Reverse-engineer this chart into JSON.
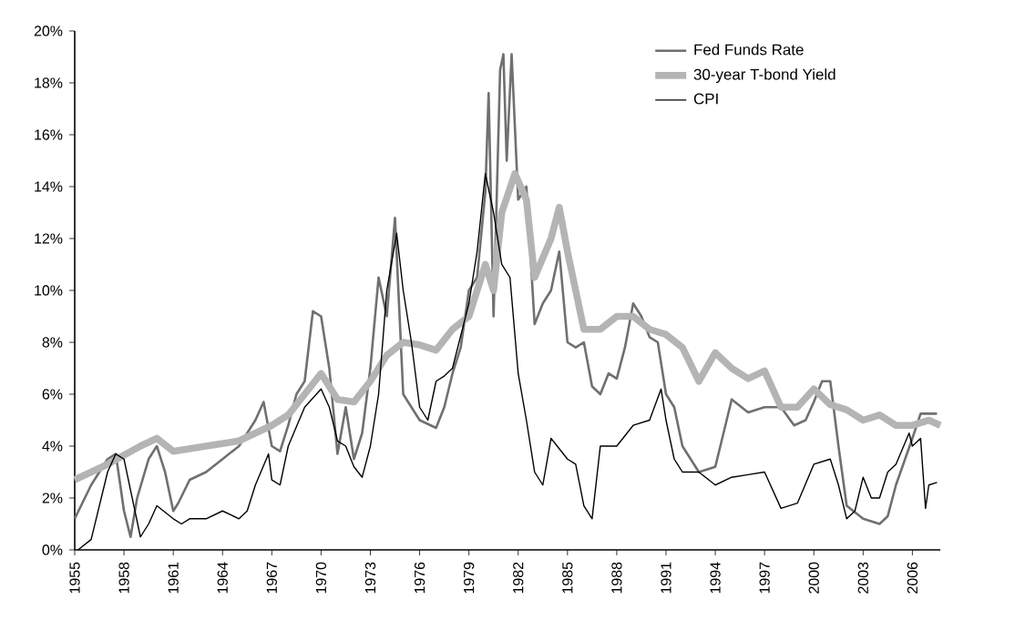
{
  "chart_data": {
    "type": "line",
    "xlim": [
      1955,
      2007.7
    ],
    "xticks": [
      1955,
      1958,
      1961,
      1964,
      1967,
      1970,
      1973,
      1976,
      1979,
      1982,
      1985,
      1988,
      1991,
      1994,
      1997,
      2000,
      2003,
      2006
    ],
    "ylim": [
      0,
      20
    ],
    "yticks": [
      {
        "value": 0,
        "label": "0%"
      },
      {
        "value": 2,
        "label": "2%"
      },
      {
        "value": 4,
        "label": "4%"
      },
      {
        "value": 6,
        "label": "6%"
      },
      {
        "value": 8,
        "label": "8%"
      },
      {
        "value": 10,
        "label": "10%"
      },
      {
        "value": 12,
        "label": "12%"
      },
      {
        "value": 14,
        "label": "14%"
      },
      {
        "value": 16,
        "label": "16%"
      },
      {
        "value": 18,
        "label": "18%"
      },
      {
        "value": 20,
        "label": "20%"
      }
    ],
    "grid": false,
    "legend": "top right",
    "marker": "none",
    "line_style": "solid",
    "series": [
      {
        "name": "Fed Funds Rate",
        "color": "#707070",
        "x": [
          1955,
          1956,
          1957,
          1957.5,
          1958,
          1958.4,
          1958.8,
          1959.5,
          1960,
          1960.5,
          1961,
          1961.3,
          1962,
          1963,
          1964,
          1965,
          1966,
          1966.5,
          1967,
          1967.5,
          1968,
          1968.5,
          1969,
          1969.5,
          1970,
          1970.5,
          1971,
          1971.5,
          1972,
          1972.5,
          1973,
          1973.5,
          1974,
          1974.5,
          1975,
          1975.5,
          1976,
          1977,
          1977.5,
          1978,
          1978.5,
          1979,
          1979.5,
          1980,
          1980.2,
          1980.5,
          1980.9,
          1981.1,
          1981.3,
          1981.6,
          1982,
          1982.5,
          1983,
          1983.5,
          1984,
          1984.5,
          1985,
          1985.5,
          1986,
          1986.5,
          1987,
          1987.5,
          1988,
          1988.5,
          1989,
          1989.5,
          1990,
          1990.5,
          1991,
          1991.5,
          1992,
          1993,
          1994,
          1994.5,
          1995,
          1996,
          1997,
          1998,
          1998.8,
          1999.5,
          2000,
          2000.5,
          2001,
          2001.5,
          2002,
          2003,
          2004,
          2004.5,
          2005,
          2006,
          2006.5,
          2007.5
        ],
        "values": [
          1.2,
          2.5,
          3.5,
          3.7,
          1.5,
          0.5,
          2,
          3.5,
          4.0,
          3,
          1.5,
          1.8,
          2.7,
          3.0,
          3.5,
          4.0,
          5.0,
          5.7,
          4.0,
          3.8,
          4.8,
          6.0,
          6.5,
          9.2,
          9.0,
          7.0,
          3.7,
          5.5,
          3.5,
          4.5,
          7,
          10.5,
          9,
          12.8,
          6,
          5.5,
          5,
          4.7,
          5.5,
          6.8,
          7.8,
          10,
          10.5,
          13.8,
          17.6,
          9,
          18.5,
          19.1,
          15,
          19.1,
          13.5,
          14,
          8.7,
          9.5,
          10,
          11.5,
          8,
          7.8,
          8,
          6.3,
          6.0,
          6.8,
          6.6,
          7.8,
          9.5,
          9,
          8.2,
          8,
          6,
          5.5,
          4,
          3,
          3.2,
          4.5,
          5.8,
          5.3,
          5.5,
          5.5,
          4.8,
          5.0,
          5.7,
          6.5,
          6.5,
          4,
          1.7,
          1.2,
          1.0,
          1.3,
          2.5,
          4.3,
          5.25,
          5.25
        ]
      },
      {
        "name": "30-year T-bond Yield",
        "color": "#b4b4b4",
        "x": [
          1955,
          1957,
          1959,
          1960,
          1961,
          1963,
          1965,
          1966,
          1967,
          1968,
          1969,
          1970,
          1971,
          1972,
          1973,
          1974,
          1975,
          1976,
          1977,
          1978,
          1979,
          1980,
          1980.5,
          1981,
          1981.8,
          1982.5,
          1983,
          1984,
          1984.5,
          1985,
          1986,
          1987,
          1988,
          1989,
          1990,
          1991,
          1992,
          1993,
          1994,
          1995,
          1996,
          1997,
          1998,
          1999,
          2000,
          2001,
          2002,
          2003,
          2004,
          2005,
          2006,
          2007,
          2007.7
        ],
        "values": [
          2.7,
          3.3,
          4.0,
          4.3,
          3.8,
          4.0,
          4.2,
          4.5,
          4.8,
          5.2,
          6.0,
          6.8,
          5.8,
          5.7,
          6.5,
          7.5,
          8.0,
          7.9,
          7.7,
          8.5,
          9.0,
          11,
          10,
          13,
          14.5,
          13.5,
          10.5,
          12.0,
          13.2,
          11.5,
          8.5,
          8.5,
          9,
          9,
          8.5,
          8.3,
          7.8,
          6.5,
          7.6,
          7,
          6.6,
          6.9,
          5.5,
          5.5,
          6.2,
          5.6,
          5.4,
          5.0,
          5.2,
          4.8,
          4.8,
          5.0,
          4.8
        ]
      },
      {
        "name": "CPI",
        "color": "#000000",
        "x": [
          1955.2,
          1956,
          1957,
          1957.5,
          1958,
          1958.5,
          1959,
          1959.5,
          1960,
          1961,
          1961.5,
          1962,
          1963,
          1964,
          1965,
          1965.5,
          1966,
          1966.8,
          1967,
          1967.5,
          1968,
          1969,
          1970,
          1970.5,
          1971,
          1971.5,
          1972,
          1972.5,
          1973,
          1973.5,
          1974,
          1974.6,
          1975,
          1975.5,
          1976,
          1976.5,
          1977,
          1977.5,
          1978,
          1979,
          1979.5,
          1980,
          1980.5,
          1981,
          1981.5,
          1982,
          1982.5,
          1983,
          1983.5,
          1984,
          1985,
          1985.5,
          1986,
          1986.5,
          1987,
          1988,
          1989,
          1990,
          1990.7,
          1991,
          1991.5,
          1992,
          1993,
          1994,
          1995,
          1996,
          1997,
          1998,
          1999,
          2000,
          2001,
          2001.5,
          2002,
          2002.5,
          2003,
          2003.5,
          2004,
          2004.5,
          2005,
          2005.8,
          2006,
          2006.5,
          2006.8,
          2007,
          2007.5
        ],
        "values": [
          0,
          0.4,
          3.0,
          3.7,
          3.5,
          2.0,
          0.5,
          1.0,
          1.7,
          1.2,
          1.0,
          1.2,
          1.2,
          1.5,
          1.2,
          1.5,
          2.5,
          3.7,
          2.7,
          2.5,
          4,
          5.5,
          6.2,
          5.5,
          4.2,
          4.0,
          3.2,
          2.8,
          4,
          6,
          10,
          12.2,
          10,
          8,
          5.5,
          5,
          6.5,
          6.7,
          7,
          9.5,
          11.5,
          14.5,
          13,
          11,
          10.5,
          6.8,
          5,
          3,
          2.5,
          4.3,
          3.5,
          3.3,
          1.7,
          1.2,
          4,
          4.0,
          4.8,
          5,
          6.2,
          5,
          3.5,
          3.0,
          3.0,
          2.5,
          2.8,
          2.9,
          3.0,
          1.6,
          1.8,
          3.3,
          3.5,
          2.5,
          1.2,
          1.5,
          2.8,
          2.0,
          2.0,
          3.0,
          3.3,
          4.5,
          4.0,
          4.3,
          1.6,
          2.5,
          2.6
        ]
      }
    ]
  }
}
